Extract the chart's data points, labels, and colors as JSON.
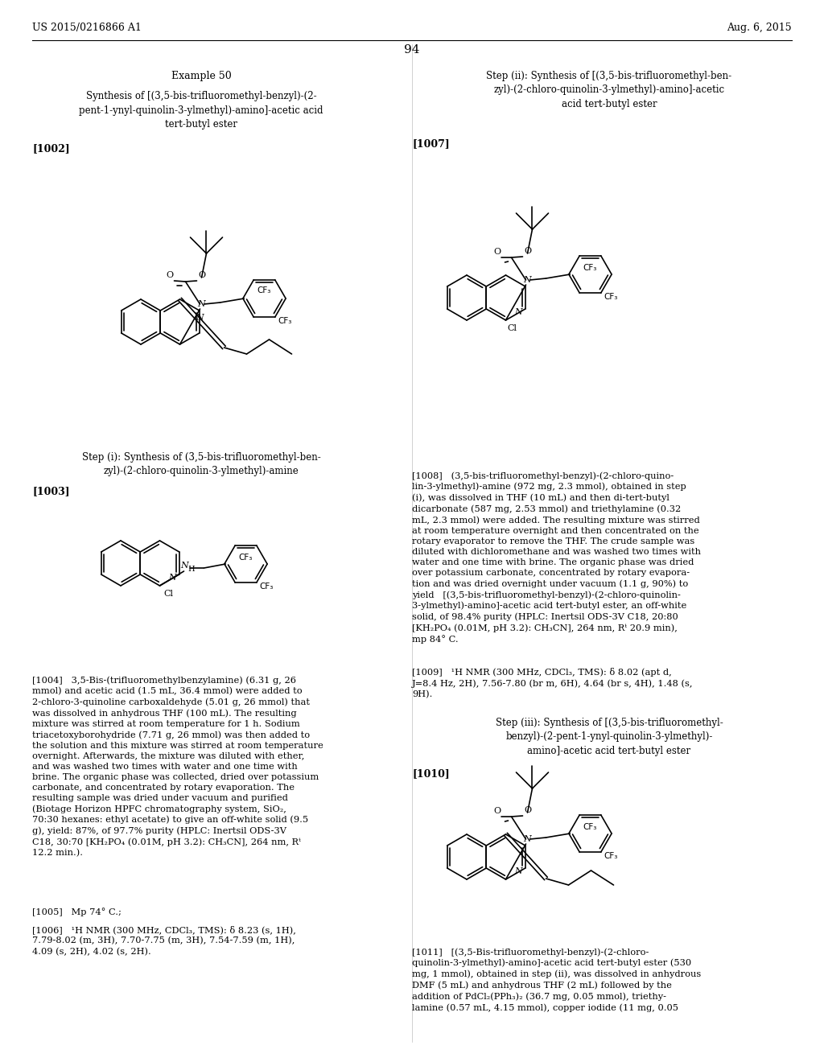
{
  "background_color": "#ffffff",
  "header_left": "US 2015/0216866 A1",
  "header_right": "Aug. 6, 2015",
  "page_number": "94"
}
